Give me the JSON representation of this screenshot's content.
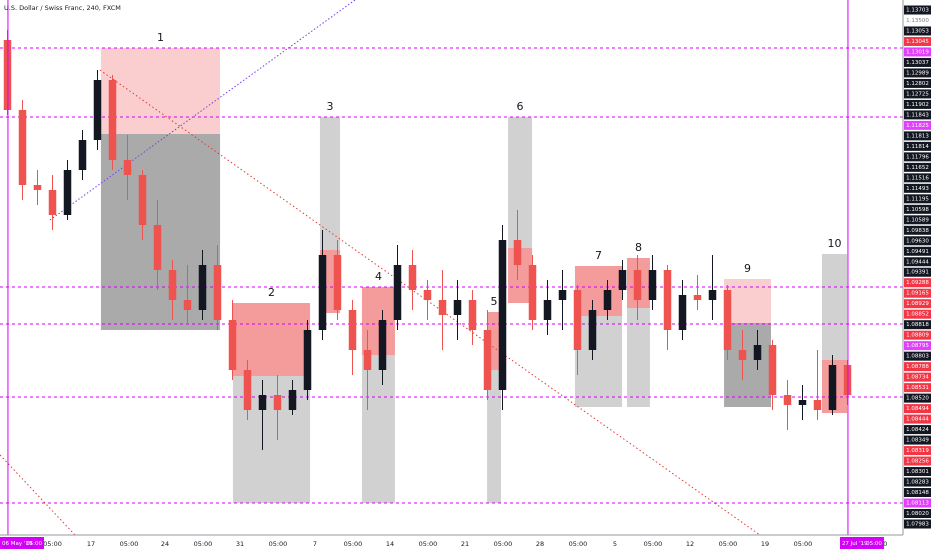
{
  "chart_data": {
    "type": "candlestick",
    "title": "U.S. Dollar / Swiss Franc, 240, FXCM",
    "xlim": [
      0,
      60.2
    ],
    "ylim": [
      1.0822,
      1.1357
    ],
    "xticks": [
      {
        "value": 3.5,
        "label": "05:00"
      },
      {
        "value": 6.07,
        "label": "17"
      },
      {
        "value": 8.6,
        "label": "05:00"
      },
      {
        "value": 11,
        "label": "24"
      },
      {
        "value": 13.53,
        "label": "05:00"
      },
      {
        "value": 16,
        "label": "31"
      },
      {
        "value": 18.53,
        "label": "05:00"
      },
      {
        "value": 21,
        "label": "7"
      },
      {
        "value": 23.53,
        "label": "05:00"
      },
      {
        "value": 26,
        "label": "14"
      },
      {
        "value": 28.53,
        "label": "05:00"
      },
      {
        "value": 31,
        "label": "21"
      },
      {
        "value": 33.53,
        "label": "05:00"
      },
      {
        "value": 36,
        "label": "28"
      },
      {
        "value": 38.53,
        "label": "05:00"
      },
      {
        "value": 41,
        "label": "5"
      },
      {
        "value": 43.53,
        "label": "05:00"
      },
      {
        "value": 46,
        "label": "12"
      },
      {
        "value": 48.53,
        "label": "05:00"
      },
      {
        "value": 51,
        "label": "19"
      },
      {
        "value": 53.53,
        "label": "05:00"
      },
      {
        "value": 58.53,
        "label": "05:00"
      }
    ],
    "up_color": "#131722",
    "down_color": "#ef5350",
    "candles": {
      "x": [
        0.5,
        1.5,
        2.5,
        3.5,
        4.5,
        5.5,
        6.5,
        7.5,
        8.5,
        9.5,
        10.5,
        11.5,
        12.5,
        13.5,
        14.5,
        15.5,
        16.5,
        17.5,
        18.5,
        19.5,
        20.5,
        21.5,
        22.5,
        23.5,
        24.5,
        25.5,
        26.5,
        27.5,
        28.5,
        29.5,
        30.5,
        31.5,
        32.5,
        33.5,
        34.5,
        35.5,
        36.5,
        37.5,
        38.5,
        39.5,
        40.5,
        41.5,
        42.5,
        43.5,
        44.5,
        45.5,
        46.5,
        47.5,
        48.5,
        49.5,
        50.5,
        51.5,
        52.5,
        53.5,
        54.5,
        55.5,
        56.5
      ],
      "open": [
        1.1317,
        1.1247,
        1.1172,
        1.1167,
        1.1142,
        1.1187,
        1.1217,
        1.1277,
        1.1197,
        1.1182,
        1.1132,
        1.1087,
        1.1057,
        1.1047,
        1.1092,
        1.1037,
        1.0987,
        1.0947,
        1.0962,
        1.0947,
        1.0967,
        1.1027,
        1.1102,
        1.1047,
        1.1007,
        1.0987,
        1.1037,
        1.1092,
        1.1067,
        1.1057,
        1.1042,
        1.1057,
        1.1027,
        1.0967,
        1.1117,
        1.1092,
        1.1037,
        1.1057,
        1.1067,
        1.1007,
        1.1047,
        1.1067,
        1.1087,
        1.1057,
        1.1087,
        1.1027,
        1.1062,
        1.1057,
        1.1067,
        1.1007,
        1.0997,
        1.1012,
        1.0962,
        1.0952,
        1.0957,
        1.0947,
        1.0992
      ],
      "high": [
        1.1327,
        1.1257,
        1.1187,
        1.1182,
        1.1197,
        1.1227,
        1.1287,
        1.1282,
        1.1222,
        1.1187,
        1.1157,
        1.1097,
        1.1092,
        1.1107,
        1.1112,
        1.1057,
        1.0997,
        1.0977,
        1.0982,
        1.0977,
        1.1037,
        1.1127,
        1.1117,
        1.1057,
        1.1027,
        1.1047,
        1.1112,
        1.1107,
        1.1077,
        1.1087,
        1.1077,
        1.1067,
        1.1047,
        1.1132,
        1.1147,
        1.1102,
        1.1077,
        1.1087,
        1.1072,
        1.1057,
        1.1077,
        1.1097,
        1.1102,
        1.1102,
        1.1092,
        1.1077,
        1.1082,
        1.1102,
        1.1072,
        1.1027,
        1.1027,
        1.1017,
        1.0977,
        1.0972,
        1.1007,
        1.1002,
        1.0997
      ],
      "low": [
        1.1242,
        1.1157,
        1.1152,
        1.1127,
        1.1137,
        1.1177,
        1.1207,
        1.1187,
        1.1157,
        1.1117,
        1.1067,
        1.1037,
        1.1032,
        1.1037,
        1.1027,
        1.0977,
        1.0937,
        1.0907,
        1.0917,
        1.0942,
        1.0957,
        1.1017,
        1.1037,
        1.0982,
        1.0947,
        1.0972,
        1.1027,
        1.1047,
        1.1037,
        1.1007,
        1.1017,
        1.1012,
        1.0957,
        1.0947,
        1.1077,
        1.1027,
        1.1022,
        1.1027,
        1.0982,
        1.0997,
        1.1037,
        1.1057,
        1.1037,
        1.1047,
        1.1007,
        1.1017,
        1.1047,
        1.1037,
        1.0997,
        1.0977,
        1.0987,
        1.0947,
        1.0927,
        1.0937,
        1.0937,
        1.0942,
        1.0952
      ],
      "close": [
        1.1247,
        1.1172,
        1.1167,
        1.1142,
        1.1187,
        1.1217,
        1.1277,
        1.1197,
        1.1182,
        1.1132,
        1.1087,
        1.1057,
        1.1047,
        1.1092,
        1.1037,
        1.0987,
        1.0947,
        1.0962,
        1.0947,
        1.0967,
        1.1027,
        1.1102,
        1.1047,
        1.1007,
        1.0987,
        1.1037,
        1.1092,
        1.1067,
        1.1057,
        1.1042,
        1.1057,
        1.1027,
        1.0967,
        1.1117,
        1.1092,
        1.1037,
        1.1057,
        1.1067,
        1.1007,
        1.1047,
        1.1067,
        1.1087,
        1.1057,
        1.1087,
        1.1027,
        1.1062,
        1.1057,
        1.1067,
        1.1007,
        1.0997,
        1.1012,
        1.0962,
        1.0952,
        1.0957,
        1.0947,
        1.0992,
        1.0962
      ]
    },
    "levels": [
      1.1309,
      1.124,
      1.107,
      1.1033,
      1.096,
      1.0854
    ],
    "level_color": "#d500f9",
    "zones": [
      {
        "label": "1",
        "start": 6.73,
        "end": 14.67,
        "parts": [
          {
            "top": 1.1309,
            "bottom": 1.1223,
            "color": "#f9c6c6"
          },
          {
            "top": 1.1223,
            "bottom": 1.1027,
            "color": "#9b9b9b"
          }
        ]
      },
      {
        "label": "2",
        "start": 15.53,
        "end": 20.67,
        "parts": [
          {
            "top": 1.1054,
            "bottom": 1.0981,
            "color": "#f28b8b"
          },
          {
            "top": 1.0981,
            "bottom": 1.0854,
            "color": "#c9c9c9"
          }
        ]
      },
      {
        "label": "3",
        "start": 21.33,
        "end": 22.67,
        "parts": [
          {
            "top": 1.124,
            "bottom": 1.1107,
            "color": "#c9c9c9"
          },
          {
            "top": 1.1107,
            "bottom": 1.1044,
            "color": "#f28b8b"
          }
        ]
      },
      {
        "label": "4",
        "start": 24.13,
        "end": 26.33,
        "parts": [
          {
            "top": 1.107,
            "bottom": 1.1002,
            "color": "#f28b8b"
          },
          {
            "top": 1.1002,
            "bottom": 1.0854,
            "color": "#c9c9c9"
          }
        ]
      },
      {
        "label": "5",
        "start": 32.47,
        "end": 33.4,
        "parts": [
          {
            "top": 1.1045,
            "bottom": 1.0987,
            "color": "#f28b8b"
          },
          {
            "top": 1.0987,
            "bottom": 1.0854,
            "color": "#c9c9c9"
          }
        ]
      },
      {
        "label": "6",
        "start": 33.87,
        "end": 35.47,
        "parts": [
          {
            "top": 1.124,
            "bottom": 1.1109,
            "color": "#c9c9c9"
          },
          {
            "top": 1.1109,
            "bottom": 1.1054,
            "color": "#f28b8b"
          }
        ]
      },
      {
        "label": "7",
        "start": 38.33,
        "end": 41.47,
        "parts": [
          {
            "top": 1.1091,
            "bottom": 1.1041,
            "color": "#f28b8b"
          },
          {
            "top": 1.1041,
            "bottom": 1.095,
            "color": "#c9c9c9"
          }
        ]
      },
      {
        "label": "8",
        "start": 41.8,
        "end": 43.33,
        "parts": [
          {
            "top": 1.1099,
            "bottom": 1.1049,
            "color": "#f28b8b"
          },
          {
            "top": 1.1049,
            "bottom": 1.095,
            "color": "#c9c9c9"
          }
        ]
      },
      {
        "label": "9",
        "start": 48.27,
        "end": 51.4,
        "parts": [
          {
            "top": 1.1078,
            "bottom": 1.1034,
            "color": "#f9c6c6"
          },
          {
            "top": 1.1034,
            "bottom": 1.095,
            "color": "#9b9b9b"
          }
        ]
      },
      {
        "label": "10",
        "start": 54.8,
        "end": 56.47,
        "parts": [
          {
            "top": 1.1103,
            "bottom": 1.0997,
            "color": "#c9c9c9"
          },
          {
            "top": 1.0997,
            "bottom": 1.0944,
            "color": "#f28b8b"
          }
        ]
      }
    ],
    "markers": [
      {
        "x": 0.53,
        "date": "06 May '19",
        "time": "05:00"
      },
      {
        "x": 56.53,
        "date": "27 Jul '19",
        "time": "05:00"
      }
    ],
    "price_labels": [
      {
        "text": "1.13703",
        "style": "dark"
      },
      {
        "text": "1.13500",
        "style": "plain"
      },
      {
        "text": "1.13053",
        "style": "dark"
      },
      {
        "text": "1.13045",
        "style": "red"
      },
      {
        "text": "1.13019",
        "style": "magenta"
      },
      {
        "text": "1.13037",
        "style": "dark"
      },
      {
        "text": "1.12989",
        "style": "dark"
      },
      {
        "text": "1.12802",
        "style": "dark"
      },
      {
        "text": "1.12725",
        "style": "dark"
      },
      {
        "text": "1.11902",
        "style": "dark"
      },
      {
        "text": "1.11843",
        "style": "dark"
      },
      {
        "text": "1.11825",
        "style": "magenta"
      },
      {
        "text": "1.11813",
        "style": "dark"
      },
      {
        "text": "1.11814",
        "style": "dark"
      },
      {
        "text": "1.11796",
        "style": "dark"
      },
      {
        "text": "1.11652",
        "style": "dark"
      },
      {
        "text": "1.11516",
        "style": "dark"
      },
      {
        "text": "1.11493",
        "style": "dark"
      },
      {
        "text": "1.11195",
        "style": "dark"
      },
      {
        "text": "1.10598",
        "style": "dark"
      },
      {
        "text": "1.10589",
        "style": "dark"
      },
      {
        "text": "1.09838",
        "style": "dark"
      },
      {
        "text": "1.09630",
        "style": "dark"
      },
      {
        "text": "1.09491",
        "style": "dark"
      },
      {
        "text": "1.09444",
        "style": "dark"
      },
      {
        "text": "1.09391",
        "style": "dark"
      },
      {
        "text": "1.09288",
        "style": "red"
      },
      {
        "text": "1.09165",
        "style": "red"
      },
      {
        "text": "1.08929",
        "style": "red"
      },
      {
        "text": "1.08852",
        "style": "red"
      },
      {
        "text": "1.08818",
        "style": "dark"
      },
      {
        "text": "1.08809",
        "style": "red"
      },
      {
        "text": "1.08795",
        "style": "magenta"
      },
      {
        "text": "1.08803",
        "style": "dark"
      },
      {
        "text": "1.08788",
        "style": "red"
      },
      {
        "text": "1.08734",
        "style": "red"
      },
      {
        "text": "1.08531",
        "style": "red"
      },
      {
        "text": "1.08520",
        "style": "dark"
      },
      {
        "text": "1.08494",
        "style": "red"
      },
      {
        "text": "1.08444",
        "style": "red"
      },
      {
        "text": "1.08424",
        "style": "dark"
      },
      {
        "text": "1.08349",
        "style": "dark"
      },
      {
        "text": "1.08319",
        "style": "red"
      },
      {
        "text": "1.08256",
        "style": "red"
      },
      {
        "text": "1.08301",
        "style": "dark"
      },
      {
        "text": "1.08283",
        "style": "dark"
      },
      {
        "text": "1.08148",
        "style": "dark"
      },
      {
        "text": "1.08113",
        "style": "magenta"
      },
      {
        "text": "1.08020",
        "style": "dark"
      },
      {
        "text": "1.07983",
        "style": "dark"
      }
    ]
  }
}
